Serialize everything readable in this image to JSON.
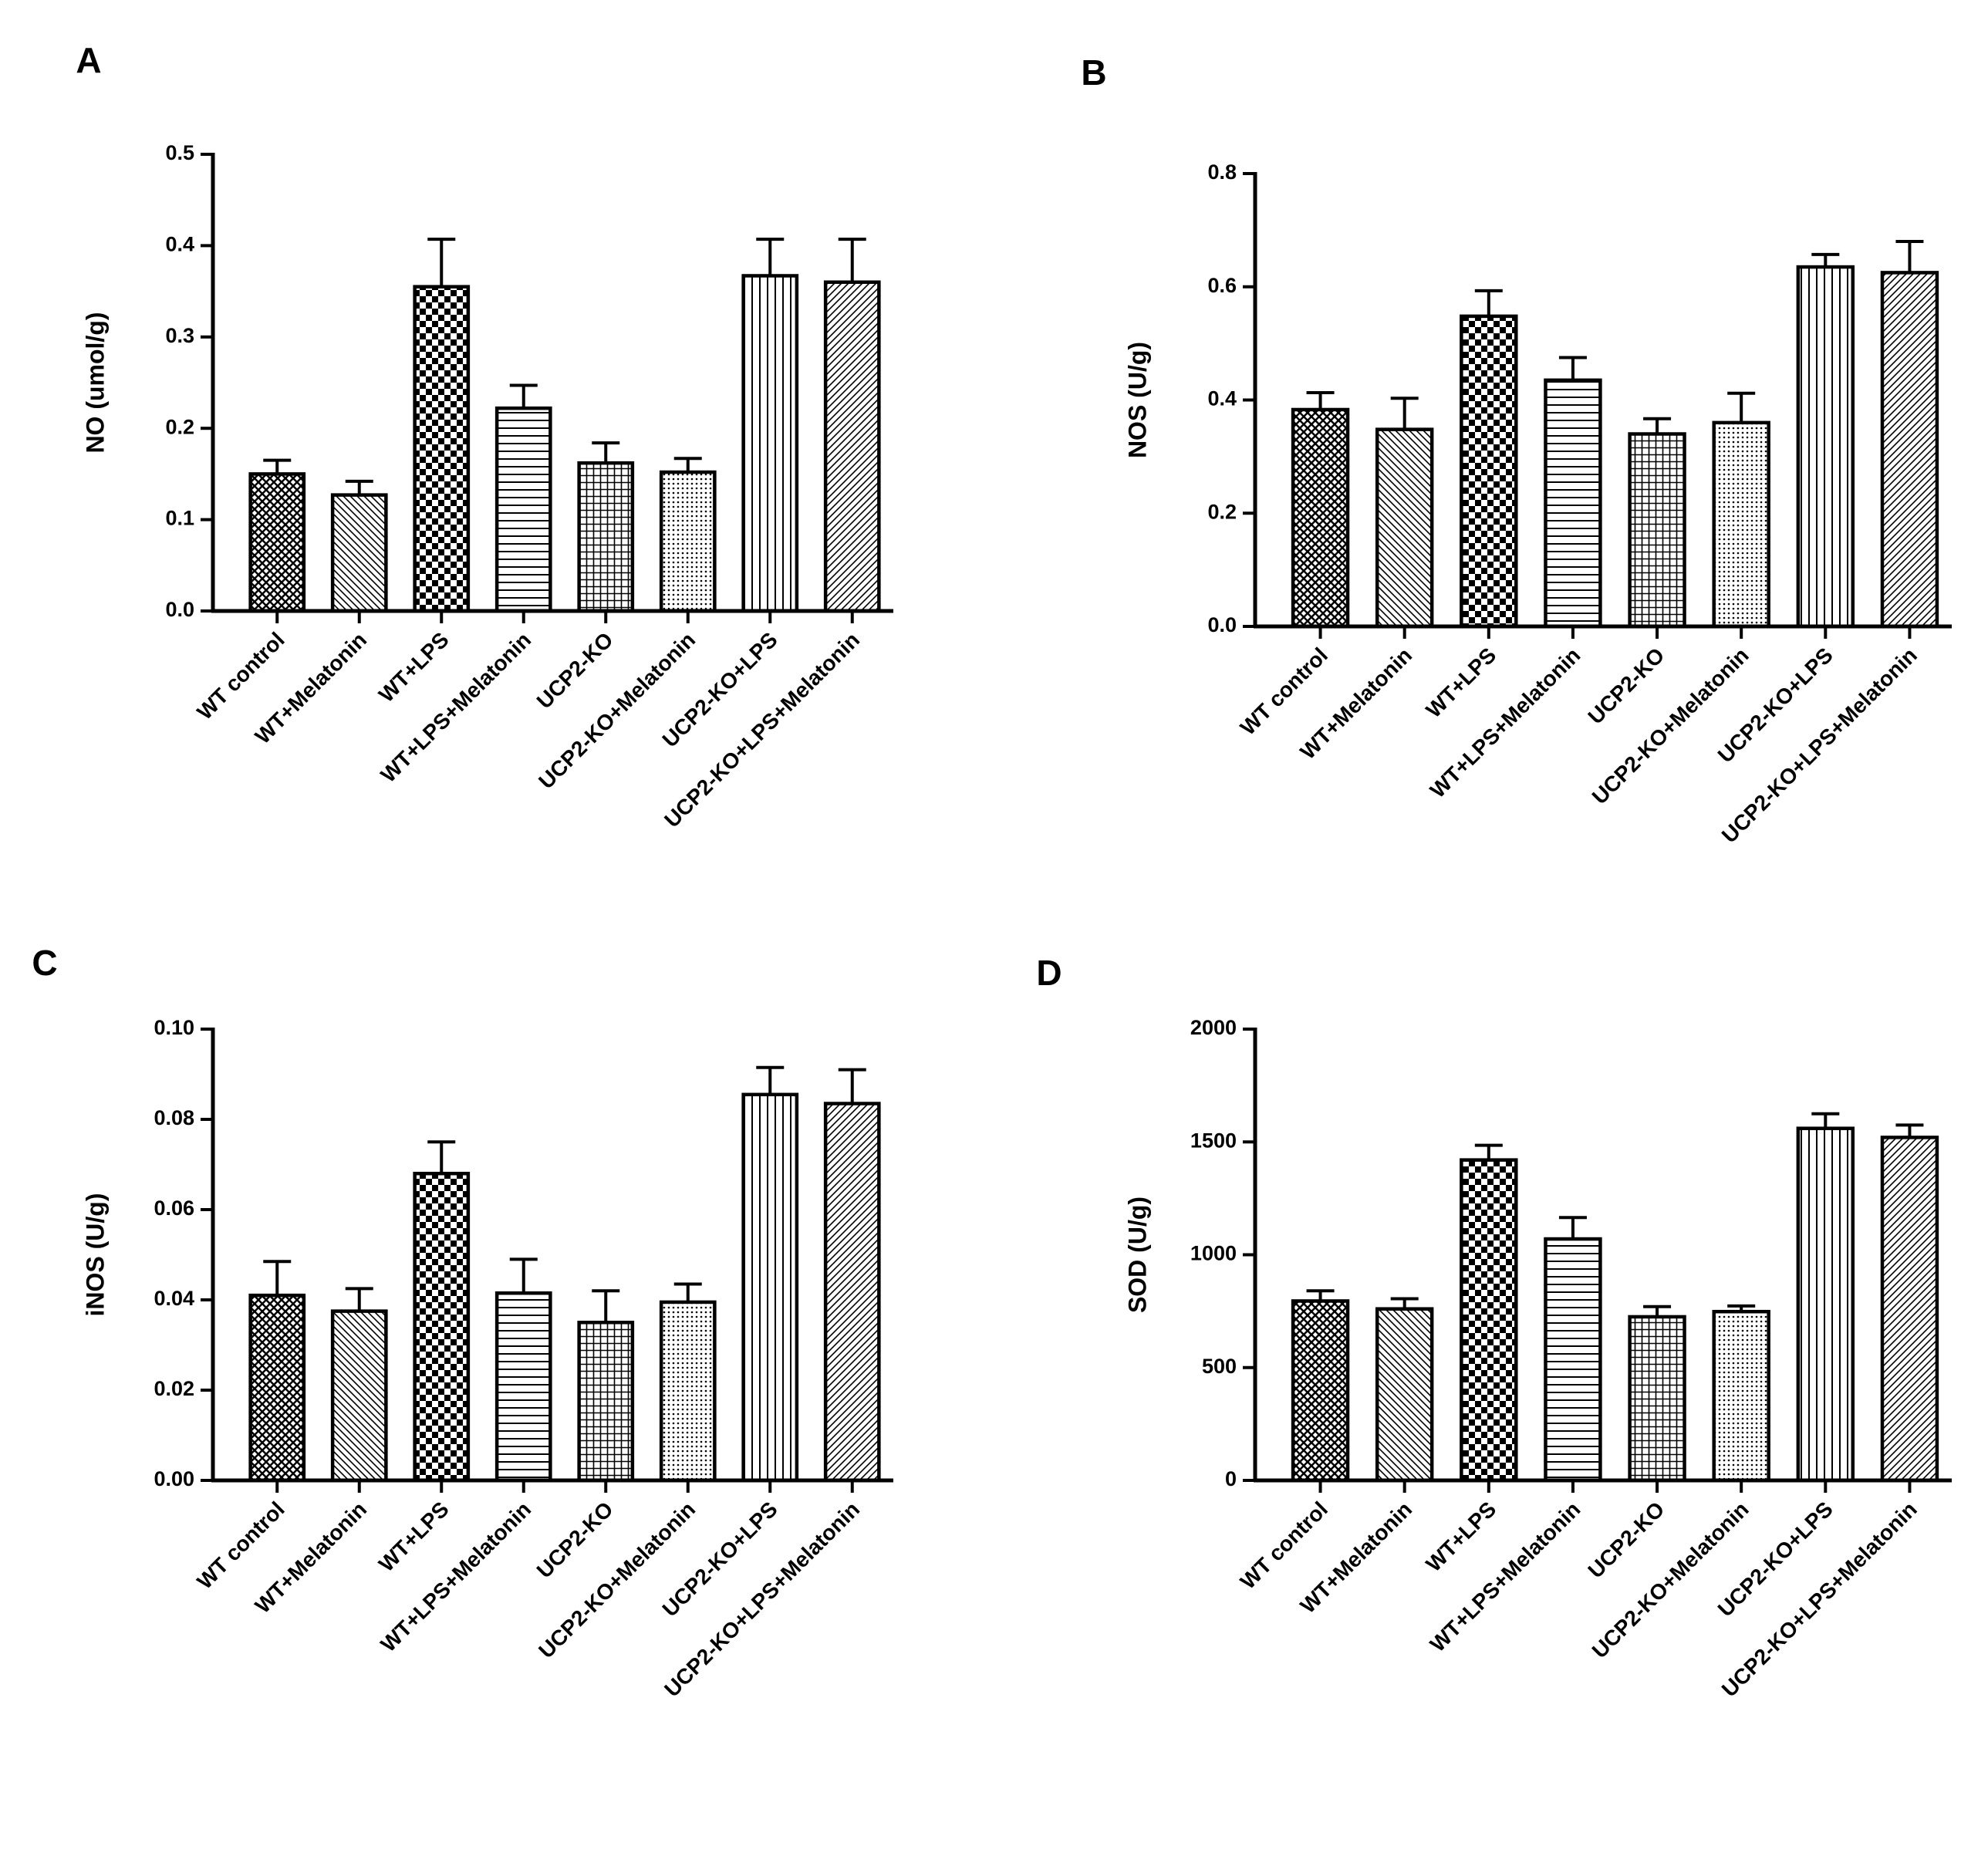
{
  "chart_data": [
    {
      "type": "bar",
      "panel": "A",
      "y_label": "NO (umol/g)",
      "categories": [
        "WT control",
        "WT+Melatonin",
        "WT+LPS",
        "WT+LPS+Melatonin",
        "UCP2-KO",
        "UCP2-KO+Melatonin",
        "UCP2-KO+LPS",
        "UCP2-KO+LPS+Melatonin"
      ],
      "values": [
        0.15,
        0.127,
        0.355,
        0.222,
        0.162,
        0.152,
        0.367,
        0.36
      ],
      "errors": [
        0.015,
        0.015,
        0.052,
        0.025,
        0.022,
        0.015,
        0.04,
        0.047
      ],
      "color": "#000000",
      "ylim": [
        0,
        0.5
      ],
      "yticks": [
        {
          "value": 0,
          "label": "0.0"
        },
        0.1,
        0.2,
        0.3,
        0.4,
        0.5
      ]
    },
    {
      "type": "bar",
      "panel": "B",
      "y_label": "NOS (U/g)",
      "categories": [
        "WT control",
        "WT+Melatonin",
        "WT+LPS",
        "WT+LPS+Melatonin",
        "UCP2-KO",
        "UCP2-KO+Melatonin",
        "UCP2-KO+LPS",
        "UCP2-KO+LPS+Melatonin"
      ],
      "values": [
        0.383,
        0.348,
        0.548,
        0.435,
        0.34,
        0.36,
        0.635,
        0.625
      ],
      "errors": [
        0.03,
        0.055,
        0.045,
        0.04,
        0.027,
        0.052,
        0.022,
        0.055
      ],
      "color": "#000000",
      "ylim": [
        0,
        0.8
      ],
      "yticks": [
        {
          "value": 0,
          "label": "0.0"
        },
        0.2,
        0.4,
        0.6,
        0.8
      ]
    },
    {
      "type": "bar",
      "panel": "C",
      "y_label": "iNOS (U/g)",
      "categories": [
        "WT control",
        "WT+Melatonin",
        "WT+LPS",
        "WT+LPS+Melatonin",
        "UCP2-KO",
        "UCP2-KO+Melatonin",
        "UCP2-KO+LPS",
        "UCP2-KO+LPS+Melatonin"
      ],
      "values": [
        0.041,
        0.0375,
        0.068,
        0.0415,
        0.035,
        0.0395,
        0.0855,
        0.0835
      ],
      "errors": [
        0.0075,
        0.005,
        0.007,
        0.0075,
        0.007,
        0.004,
        0.006,
        0.0075
      ],
      "color": "#000000",
      "ylim": [
        0,
        0.1
      ],
      "yticks": [
        {
          "value": 0,
          "label": "0.00"
        },
        0.02,
        0.04,
        0.06,
        0.08,
        {
          "value": 0.1,
          "label": "0.10"
        }
      ]
    },
    {
      "type": "bar",
      "panel": "D",
      "y_label": "SOD (U/g)",
      "categories": [
        "WT control",
        "WT+Melatonin",
        "WT+LPS",
        "WT+LPS+Melatonin",
        "UCP2-KO",
        "UCP2-KO+Melatonin",
        "UCP2-KO+LPS",
        "UCP2-KO+LPS+Melatonin"
      ],
      "values": [
        795,
        760,
        1420,
        1070,
        725,
        748,
        1560,
        1520
      ],
      "errors": [
        45,
        45,
        65,
        95,
        45,
        25,
        65,
        55
      ],
      "color": "#000000",
      "ylim": [
        0,
        2000
      ],
      "yticks": [
        0,
        500,
        1000,
        1500,
        2000
      ]
    }
  ]
}
